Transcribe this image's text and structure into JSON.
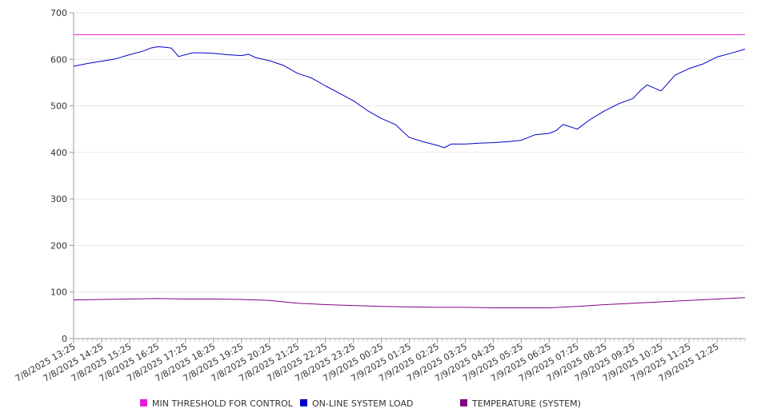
{
  "chart_data": {
    "type": "line",
    "title": "",
    "xlabel": "",
    "ylabel": "",
    "ylim": [
      0,
      700
    ],
    "yticks": [
      0,
      100,
      200,
      300,
      400,
      500,
      600,
      700
    ],
    "grid": true,
    "legend_position": "bottom",
    "x_tick_labels": [
      "7/8/2025 13:25",
      "7/8/2025 14:25",
      "7/8/2025 15:25",
      "7/8/2025 16:25",
      "7/8/2025 17:25",
      "7/8/2025 18:25",
      "7/8/2025 19:25",
      "7/8/2025 20:25",
      "7/8/2025 21:25",
      "7/8/2025 22:25",
      "7/8/2025 23:25",
      "7/9/2025 00:25",
      "7/9/2025 01:25",
      "7/9/2025 02:25",
      "7/9/2025 03:25",
      "7/9/2025 04:25",
      "7/9/2025 05:25",
      "7/9/2025 06:25",
      "7/9/2025 07:25",
      "7/9/2025 08:25",
      "7/9/2025 09:25",
      "7/9/2025 10:25",
      "7/9/2025 11:25",
      "7/9/2025 12:25"
    ],
    "x_range": [
      "7/8/2025 13:25",
      "7/9/2025 13:25"
    ],
    "series": [
      {
        "name": "MIN THRESHOLD FOR CONTROL",
        "color": "#e81cd6",
        "x": [
          "7/8/2025 13:25",
          "7/9/2025 13:25"
        ],
        "values": [
          653,
          653
        ]
      },
      {
        "name": "ON-LINE SYSTEM LOAD",
        "color": "#0000cc",
        "x": [
          "7/8/2025 13:25",
          "7/8/2025 13:55",
          "7/8/2025 14:25",
          "7/8/2025 14:55",
          "7/8/2025 15:25",
          "7/8/2025 15:55",
          "7/8/2025 16:10",
          "7/8/2025 16:25",
          "7/8/2025 16:40",
          "7/8/2025 16:55",
          "7/8/2025 17:10",
          "7/8/2025 17:25",
          "7/8/2025 17:40",
          "7/8/2025 17:55",
          "7/8/2025 18:25",
          "7/8/2025 18:55",
          "7/8/2025 19:25",
          "7/8/2025 19:40",
          "7/8/2025 19:55",
          "7/8/2025 20:25",
          "7/8/2025 20:55",
          "7/8/2025 21:25",
          "7/8/2025 21:55",
          "7/8/2025 22:25",
          "7/8/2025 22:55",
          "7/8/2025 23:25",
          "7/8/2025 23:55",
          "7/9/2025 00:25",
          "7/9/2025 00:55",
          "7/9/2025 01:25",
          "7/9/2025 01:55",
          "7/9/2025 02:25",
          "7/9/2025 02:40",
          "7/9/2025 02:55",
          "7/9/2025 03:25",
          "7/9/2025 03:55",
          "7/9/2025 04:25",
          "7/9/2025 04:55",
          "7/9/2025 05:25",
          "7/9/2025 05:55",
          "7/9/2025 06:25",
          "7/9/2025 06:40",
          "7/9/2025 06:55",
          "7/9/2025 07:25",
          "7/9/2025 07:55",
          "7/9/2025 08:25",
          "7/9/2025 08:55",
          "7/9/2025 09:25",
          "7/9/2025 09:40",
          "7/9/2025 09:55",
          "7/9/2025 10:25",
          "7/9/2025 10:55",
          "7/9/2025 11:25",
          "7/9/2025 11:55",
          "7/9/2025 12:25",
          "7/9/2025 12:55",
          "7/9/2025 13:25"
        ],
        "values": [
          585,
          591,
          596,
          601,
          610,
          618,
          624,
          627,
          626,
          624,
          606,
          610,
          614,
          614,
          613,
          610,
          608,
          611,
          604,
          597,
          587,
          570,
          560,
          543,
          527,
          511,
          490,
          473,
          460,
          432,
          423,
          415,
          410,
          418,
          418,
          420,
          421,
          423,
          426,
          438,
          441,
          447,
          460,
          450,
          472,
          490,
          505,
          516,
          532,
          545,
          532,
          566,
          580,
          590,
          605,
          613,
          622
        ]
      },
      {
        "name": "TEMPERATURE (SYSTEM)",
        "color": "#800080",
        "x": [
          "7/8/2025 13:25",
          "7/8/2025 14:25",
          "7/8/2025 15:25",
          "7/8/2025 16:25",
          "7/8/2025 17:25",
          "7/8/2025 18:25",
          "7/8/2025 19:25",
          "7/8/2025 20:25",
          "7/8/2025 21:25",
          "7/8/2025 22:25",
          "7/8/2025 23:25",
          "7/9/2025 00:25",
          "7/9/2025 01:25",
          "7/9/2025 02:25",
          "7/9/2025 03:25",
          "7/9/2025 04:25",
          "7/9/2025 05:25",
          "7/9/2025 06:25",
          "7/9/2025 07:25",
          "7/9/2025 08:25",
          "7/9/2025 09:25",
          "7/9/2025 10:25",
          "7/9/2025 11:25",
          "7/9/2025 12:25",
          "7/9/2025 13:25"
        ],
        "values": [
          83,
          84,
          85,
          86,
          85,
          85,
          84,
          82,
          76,
          73,
          71,
          69,
          68,
          67,
          67,
          66,
          66,
          66,
          69,
          73,
          76,
          79,
          82,
          85,
          88
        ]
      }
    ]
  }
}
